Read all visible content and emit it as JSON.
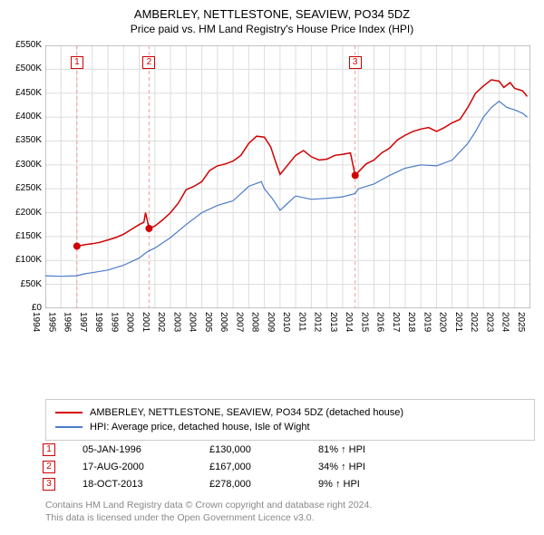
{
  "title": {
    "main": "AMBERLEY, NETTLESTONE, SEAVIEW, PO34 5DZ",
    "sub": "Price paid vs. HM Land Registry's House Price Index (HPI)",
    "fontsize_main": 13,
    "fontsize_sub": 12,
    "color": "#000000"
  },
  "chart": {
    "type": "line",
    "background_color": "#ffffff",
    "grid_color": "#dddddd",
    "axis_color": "#888888",
    "axis_label_color": "#000000",
    "axis_font_size": 10,
    "x": {
      "min": 1994,
      "max": 2025,
      "tick_step": 1,
      "labels": [
        "1994",
        "1995",
        "1996",
        "1997",
        "1998",
        "1999",
        "2000",
        "2001",
        "2002",
        "2003",
        "2004",
        "2005",
        "2006",
        "2007",
        "2008",
        "2009",
        "2010",
        "2011",
        "2012",
        "2013",
        "2014",
        "2015",
        "2016",
        "2017",
        "2018",
        "2019",
        "2020",
        "2021",
        "2022",
        "2023",
        "2024",
        "2025"
      ]
    },
    "y": {
      "min": 0,
      "max": 550000,
      "tick_step": 50000,
      "labels": [
        "£0",
        "£50K",
        "£100K",
        "£150K",
        "£200K",
        "£250K",
        "£300K",
        "£350K",
        "£400K",
        "£450K",
        "£500K",
        "£550K"
      ]
    },
    "series": [
      {
        "name": "price_paid",
        "label": "AMBERLEY, NETTLESTONE, SEAVIEW, PO34 5DZ (detached house)",
        "color": "#d00000",
        "line_width": 1.5,
        "xy": [
          [
            1996.02,
            130000
          ],
          [
            1996.5,
            133000
          ],
          [
            1997,
            135000
          ],
          [
            1997.5,
            138000
          ],
          [
            1998,
            143000
          ],
          [
            1998.5,
            148000
          ],
          [
            1999,
            155000
          ],
          [
            1999.5,
            165000
          ],
          [
            2000,
            175000
          ],
          [
            2000.3,
            180000
          ],
          [
            2000.4,
            200000
          ],
          [
            2000.63,
            167000
          ],
          [
            2001,
            172000
          ],
          [
            2001.5,
            185000
          ],
          [
            2002,
            200000
          ],
          [
            2002.5,
            220000
          ],
          [
            2003,
            248000
          ],
          [
            2003.5,
            255000
          ],
          [
            2004,
            265000
          ],
          [
            2004.5,
            288000
          ],
          [
            2005,
            298000
          ],
          [
            2005.5,
            302000
          ],
          [
            2006,
            308000
          ],
          [
            2006.5,
            320000
          ],
          [
            2007,
            345000
          ],
          [
            2007.5,
            360000
          ],
          [
            2008,
            358000
          ],
          [
            2008.4,
            338000
          ],
          [
            2008.7,
            308000
          ],
          [
            2009,
            280000
          ],
          [
            2009.5,
            300000
          ],
          [
            2010,
            320000
          ],
          [
            2010.5,
            330000
          ],
          [
            2011,
            317000
          ],
          [
            2011.5,
            310000
          ],
          [
            2012,
            312000
          ],
          [
            2012.5,
            320000
          ],
          [
            2013,
            322000
          ],
          [
            2013.5,
            325000
          ],
          [
            2013.8,
            278000
          ],
          [
            2014,
            285000
          ],
          [
            2014.5,
            302000
          ],
          [
            2015,
            310000
          ],
          [
            2015.5,
            325000
          ],
          [
            2016,
            335000
          ],
          [
            2016.5,
            352000
          ],
          [
            2017,
            362000
          ],
          [
            2017.5,
            370000
          ],
          [
            2018,
            375000
          ],
          [
            2018.5,
            378000
          ],
          [
            2019,
            370000
          ],
          [
            2019.5,
            378000
          ],
          [
            2020,
            388000
          ],
          [
            2020.5,
            395000
          ],
          [
            2021,
            420000
          ],
          [
            2021.5,
            450000
          ],
          [
            2022,
            465000
          ],
          [
            2022.5,
            478000
          ],
          [
            2023,
            475000
          ],
          [
            2023.3,
            462000
          ],
          [
            2023.7,
            472000
          ],
          [
            2024,
            460000
          ],
          [
            2024.5,
            455000
          ],
          [
            2024.8,
            443000
          ]
        ]
      },
      {
        "name": "hpi",
        "label": "HPI: Average price, detached house, Isle of Wight",
        "color": "#4a7bc8",
        "line_width": 1.2,
        "xy": [
          [
            1994,
            68000
          ],
          [
            1995,
            67000
          ],
          [
            1996,
            68000
          ],
          [
            1996.5,
            72000
          ],
          [
            1997,
            74500
          ],
          [
            1998,
            80000
          ],
          [
            1999,
            90000
          ],
          [
            2000,
            105000
          ],
          [
            2000.5,
            118000
          ],
          [
            2001,
            126000
          ],
          [
            2002,
            148000
          ],
          [
            2003,
            175000
          ],
          [
            2004,
            200000
          ],
          [
            2005,
            215000
          ],
          [
            2006,
            225000
          ],
          [
            2007,
            255000
          ],
          [
            2007.8,
            265000
          ],
          [
            2008,
            250000
          ],
          [
            2008.5,
            230000
          ],
          [
            2009,
            205000
          ],
          [
            2009.5,
            220000
          ],
          [
            2010,
            235000
          ],
          [
            2011,
            228000
          ],
          [
            2012,
            230000
          ],
          [
            2013,
            233000
          ],
          [
            2013.8,
            240000
          ],
          [
            2014,
            250000
          ],
          [
            2015,
            260000
          ],
          [
            2016,
            278000
          ],
          [
            2017,
            293000
          ],
          [
            2018,
            300000
          ],
          [
            2019,
            298000
          ],
          [
            2020,
            310000
          ],
          [
            2021,
            345000
          ],
          [
            2021.5,
            370000
          ],
          [
            2022,
            400000
          ],
          [
            2022.5,
            420000
          ],
          [
            2023,
            433000
          ],
          [
            2023.5,
            420000
          ],
          [
            2024,
            415000
          ],
          [
            2024.5,
            408000
          ],
          [
            2024.8,
            400000
          ]
        ]
      }
    ],
    "sale_markers": [
      {
        "index": "1",
        "date_label": "05-JAN-1996",
        "x": 1996.02,
        "price": 130000,
        "price_label": "£130,000",
        "hpi_label": "81% ↑ HPI",
        "color": "#d00000"
      },
      {
        "index": "2",
        "date_label": "17-AUG-2000",
        "x": 2000.63,
        "price": 167000,
        "price_label": "£167,000",
        "hpi_label": "34% ↑ HPI",
        "color": "#d00000"
      },
      {
        "index": "3",
        "date_label": "18-OCT-2013",
        "x": 2013.8,
        "price": 278000,
        "price_label": "£278,000",
        "hpi_label": "9% ↑ HPI",
        "color": "#d00000"
      }
    ],
    "sale_line_color": "#f0a0a0",
    "sale_dot_radius": 4
  },
  "legend": {
    "border_color": "#cccccc",
    "font_size": 11,
    "text_color": "#000000"
  },
  "attribution": {
    "line1": "Contains HM Land Registry data © Crown copyright and database right 2024.",
    "line2": "This data is licensed under the Open Government Licence v3.0.",
    "color": "#888888",
    "font_size": 10.5
  }
}
